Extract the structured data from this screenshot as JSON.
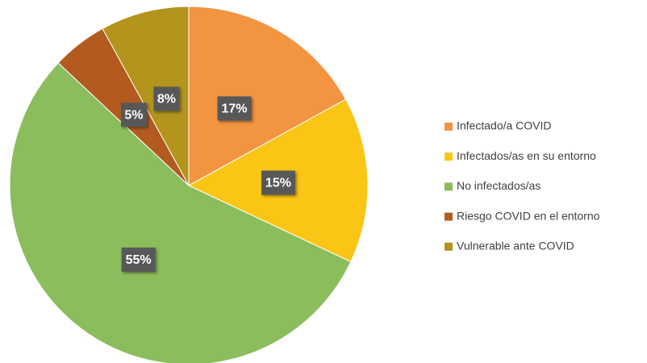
{
  "chart_data": {
    "type": "pie",
    "categories": [
      "Infectado/a COVID",
      "Infectados/as en su entorno",
      "No infectados/as",
      "Riesgo COVID en el entorno",
      "Vulnerable ante COVID"
    ],
    "values": [
      17,
      15,
      55,
      5,
      8
    ],
    "value_labels": [
      "17%",
      "15%",
      "55%",
      "5%",
      "8%"
    ],
    "colors": [
      "#f29440",
      "#fac515",
      "#8cbd5d",
      "#b35b1f",
      "#b3941d"
    ],
    "legend": "right"
  }
}
